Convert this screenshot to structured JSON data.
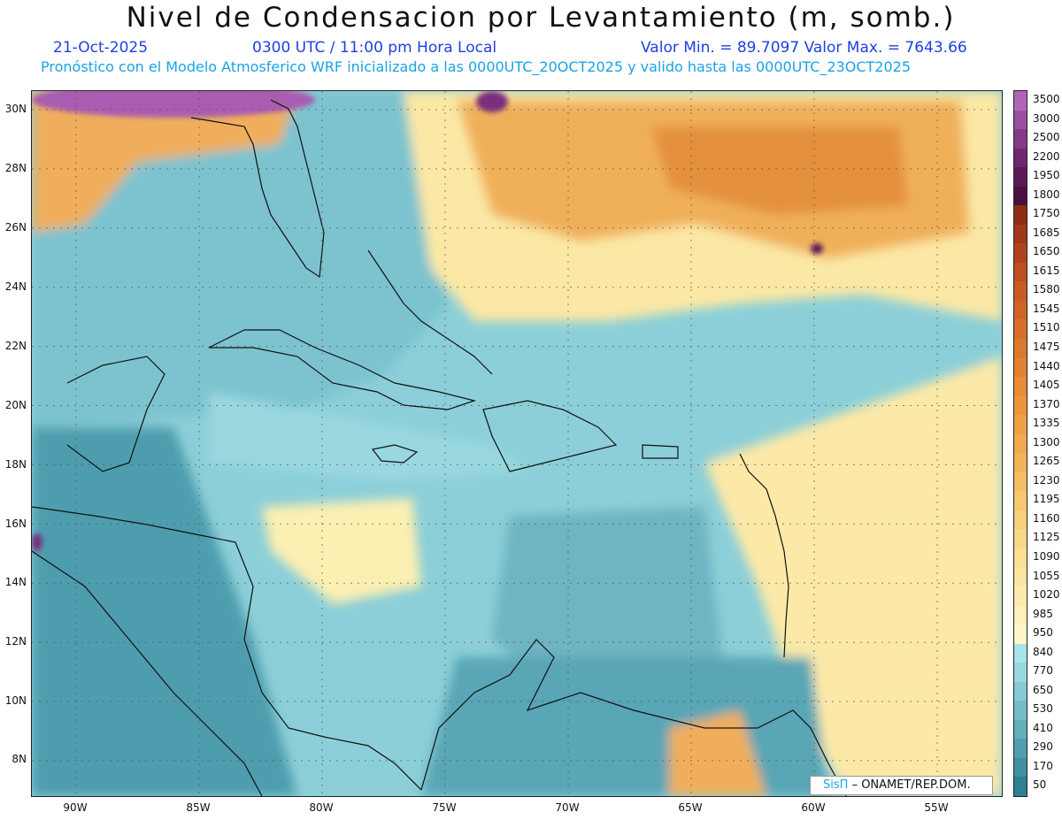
{
  "header": {
    "title": "Nivel de Condensacion por Levantamiento (m, somb.)",
    "date": "21-Oct-2025",
    "time": "0300 UTC / 11:00 pm Hora Local",
    "min_max": "Valor Min. = 89.7097  Valor Max. = 7643.66",
    "model_info": "Pronóstico con el Modelo Atmosferico WRF inicializado a las 0000UTC_20OCT2025 y valido hasta las  0000UTC_23OCT2025"
  },
  "axes": {
    "lat_labels": [
      "30N",
      "28N",
      "26N",
      "24N",
      "22N",
      "20N",
      "18N",
      "16N",
      "14N",
      "12N",
      "10N",
      "8N"
    ],
    "lon_labels": [
      "90W",
      "85W",
      "80W",
      "75W",
      "70W",
      "65W",
      "60W",
      "55W"
    ]
  },
  "legend": {
    "labels": [
      "3500",
      "3000",
      "2500",
      "2200",
      "1950",
      "1800",
      "1750",
      "1685",
      "1650",
      "1615",
      "1580",
      "1545",
      "1510",
      "1475",
      "1440",
      "1405",
      "1370",
      "1335",
      "1300",
      "1265",
      "1230",
      "1195",
      "1160",
      "1125",
      "1090",
      "1055",
      "1020",
      "985",
      "950",
      "840",
      "770",
      "650",
      "530",
      "410",
      "290",
      "170",
      "50"
    ],
    "colors": [
      "#b065b8",
      "#9a4fa0",
      "#843a88",
      "#6f2770",
      "#5a1a56",
      "#4a1040",
      "#8c2d14",
      "#a0381a",
      "#b0421e",
      "#be4d20",
      "#c85a22",
      "#d06426",
      "#d86e2a",
      "#de782e",
      "#e48232",
      "#e88c36",
      "#ec963c",
      "#efa044",
      "#f1aa4e",
      "#f3b458",
      "#f5be64",
      "#f7c870",
      "#f8d07c",
      "#f9d888",
      "#fadf94",
      "#fbe5a0",
      "#fcebac",
      "#fdf0b8",
      "#fef6c4",
      "#a8e4ea",
      "#98d8e0",
      "#86cad4",
      "#74bcc8",
      "#62aebb",
      "#509fae",
      "#3e90a0",
      "#2e8092"
    ]
  },
  "credit": {
    "brand": "SisΠ",
    "text": "– ONAMET/REP.DOM."
  },
  "field_colors": {
    "water_light": "#a8e0e6",
    "water_mid": "#86cad4",
    "water_dark": "#4d9dae",
    "land_dark": "#3a8a9c",
    "yellow": "#fcefb0",
    "orange": "#f2b25a",
    "orange_dark": "#e08a36",
    "purple": "#a85db0",
    "coast": "#111111"
  }
}
